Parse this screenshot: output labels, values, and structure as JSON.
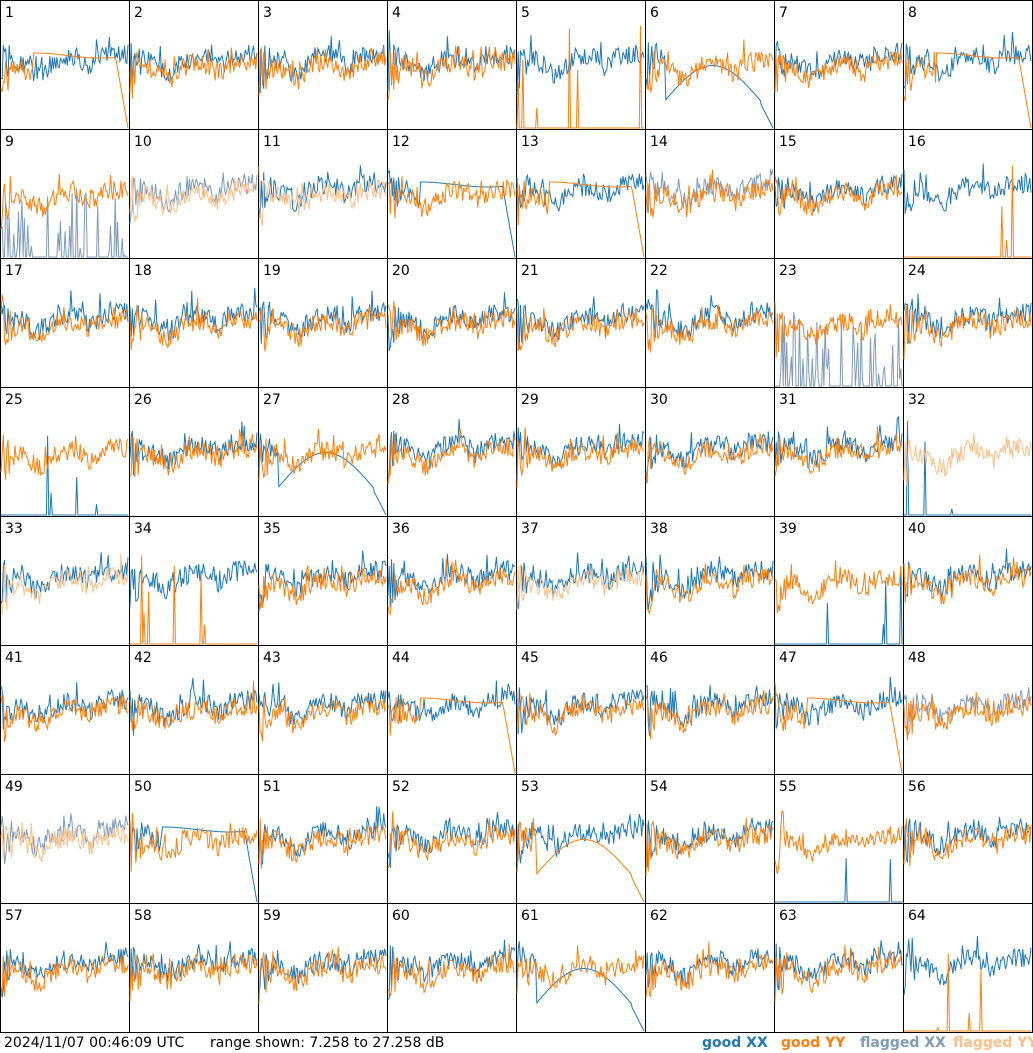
{
  "chart_data": {
    "type": "line",
    "panel_count": 64,
    "panel_labels": [
      "1",
      "2",
      "3",
      "4",
      "5",
      "6",
      "7",
      "8",
      "9",
      "10",
      "11",
      "12",
      "13",
      "14",
      "15",
      "16",
      "17",
      "18",
      "19",
      "20",
      "21",
      "22",
      "23",
      "24",
      "25",
      "26",
      "27",
      "28",
      "29",
      "30",
      "31",
      "32",
      "33",
      "34",
      "35",
      "36",
      "37",
      "38",
      "39",
      "40",
      "41",
      "42",
      "43",
      "44",
      "45",
      "46",
      "47",
      "48",
      "49",
      "50",
      "51",
      "52",
      "53",
      "54",
      "55",
      "56",
      "57",
      "58",
      "59",
      "60",
      "61",
      "62",
      "63",
      "64"
    ],
    "grid": {
      "rows": 8,
      "cols": 8
    },
    "ylim": [
      7.258,
      27.258
    ],
    "series": [
      {
        "name": "good XX",
        "color": "#1f77b4"
      },
      {
        "name": "good YY",
        "color": "#ff7f0e"
      },
      {
        "name": "flagged XX",
        "color": "#7f9bb8"
      },
      {
        "name": "flagged YY",
        "color": "#ffbf8a"
      }
    ],
    "panels": [
      {
        "x": "n",
        "y": "d"
      },
      {
        "x": "n",
        "y": "n"
      },
      {
        "x": "n",
        "y": "n"
      },
      {
        "x": "n",
        "y": "n"
      },
      {
        "x": "n",
        "y": "z"
      },
      {
        "x": "dip",
        "y": "n"
      },
      {
        "x": "n",
        "y": "n"
      },
      {
        "x": "n",
        "y": "d"
      },
      {
        "x": "fz",
        "y": "n"
      },
      {
        "x": "fn",
        "y": "fn"
      },
      {
        "x": "n",
        "y": "fn"
      },
      {
        "x": "d",
        "y": "n"
      },
      {
        "x": "n",
        "y": "d"
      },
      {
        "x": "fn",
        "y": "n"
      },
      {
        "x": "n",
        "y": "n"
      },
      {
        "x": "n",
        "y": "z"
      },
      {
        "x": "n",
        "y": "n"
      },
      {
        "x": "n",
        "y": "n"
      },
      {
        "x": "n",
        "y": "n"
      },
      {
        "x": "n",
        "y": "n"
      },
      {
        "x": "n",
        "y": "n"
      },
      {
        "x": "n",
        "y": "n"
      },
      {
        "x": "fz",
        "y": "n"
      },
      {
        "x": "n",
        "y": "n"
      },
      {
        "x": "z",
        "y": "n"
      },
      {
        "x": "n",
        "y": "n"
      },
      {
        "x": "dip",
        "y": "n"
      },
      {
        "x": "n",
        "y": "n"
      },
      {
        "x": "n",
        "y": "n"
      },
      {
        "x": "n",
        "y": "n"
      },
      {
        "x": "n",
        "y": "n"
      },
      {
        "x": "z",
        "y": "fn"
      },
      {
        "x": "n",
        "y": "fn"
      },
      {
        "x": "n",
        "y": "z"
      },
      {
        "x": "n",
        "y": "n"
      },
      {
        "x": "n",
        "y": "n"
      },
      {
        "x": "n",
        "y": "fn"
      },
      {
        "x": "n",
        "y": "n"
      },
      {
        "x": "z",
        "y": "n"
      },
      {
        "x": "n",
        "y": "n"
      },
      {
        "x": "n",
        "y": "n"
      },
      {
        "x": "n",
        "y": "n"
      },
      {
        "x": "n",
        "y": "n"
      },
      {
        "x": "n",
        "y": "d"
      },
      {
        "x": "n",
        "y": "n"
      },
      {
        "x": "n",
        "y": "n"
      },
      {
        "x": "n",
        "y": "d"
      },
      {
        "x": "fn",
        "y": "n"
      },
      {
        "x": "fn",
        "y": "fn"
      },
      {
        "x": "d",
        "y": "n"
      },
      {
        "x": "n",
        "y": "n"
      },
      {
        "x": "n",
        "y": "n"
      },
      {
        "x": "n",
        "y": "dip"
      },
      {
        "x": "n",
        "y": "n"
      },
      {
        "x": "z",
        "y": "n"
      },
      {
        "x": "n",
        "y": "n"
      },
      {
        "x": "n",
        "y": "n"
      },
      {
        "x": "n",
        "y": "n"
      },
      {
        "x": "n",
        "y": "n"
      },
      {
        "x": "n",
        "y": "n"
      },
      {
        "x": "dip",
        "y": "n"
      },
      {
        "x": "n",
        "y": "n"
      },
      {
        "x": "n",
        "y": "n"
      },
      {
        "x": "n",
        "y": "z"
      }
    ]
  },
  "footer": {
    "timestamp": "2024/11/07 00:46:09 UTC",
    "range_text": "range shown: 7.258 to 27.258 dB",
    "legend": {
      "good_xx": "good XX",
      "good_yy": "good YY",
      "flagged_xx": "flagged XX",
      "flagged_yy": "flagged YY"
    }
  }
}
